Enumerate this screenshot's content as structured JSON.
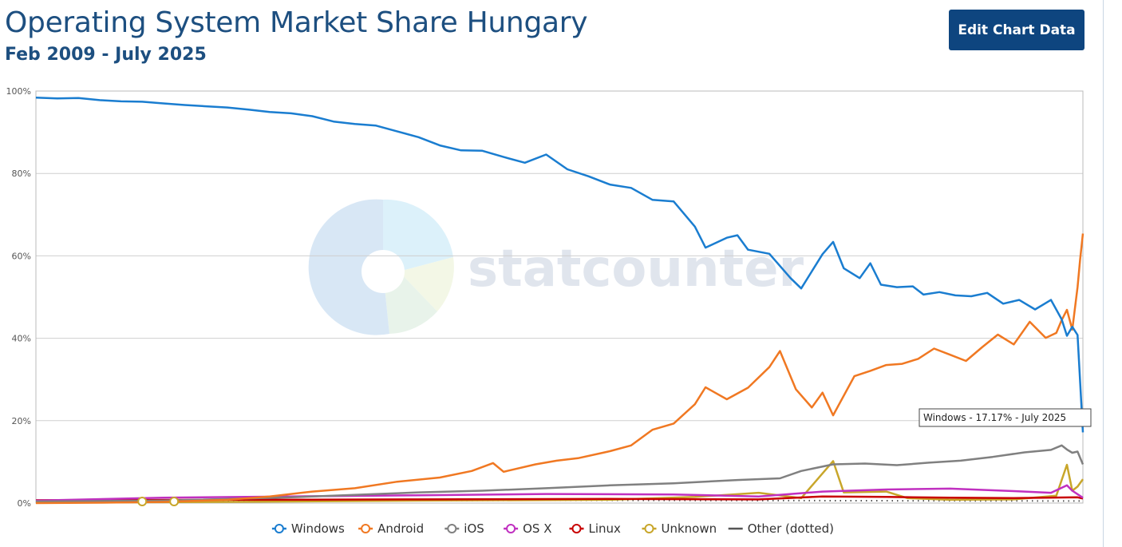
{
  "header": {
    "title": "Operating System Market Share Hungary",
    "subtitle": "Feb 2009 - July 2025",
    "edit_button": "Edit Chart Data"
  },
  "watermark": {
    "text": "statcounter"
  },
  "tooltip": {
    "text": "Windows - 17.17% - July 2025"
  },
  "chart_data": {
    "type": "line",
    "title": "Operating System Market Share Hungary",
    "subtitle": "Feb 2009 - July 2025",
    "x_range": [
      "2009-02",
      "2025-07"
    ],
    "ylim": [
      0,
      100
    ],
    "y_ticks": [
      "0%",
      "20%",
      "40%",
      "60%",
      "80%",
      "100%"
    ],
    "grid": true,
    "legend_position": "bottom",
    "series": [
      {
        "name": "Windows",
        "color": "#1a7dd0",
        "marker": "circle",
        "points": [
          [
            "2009-02",
            98.4
          ],
          [
            "2009-06",
            98.2
          ],
          [
            "2009-10",
            98.3
          ],
          [
            "2010-02",
            97.8
          ],
          [
            "2010-06",
            97.5
          ],
          [
            "2010-10",
            97.4
          ],
          [
            "2011-02",
            97.0
          ],
          [
            "2011-06",
            96.6
          ],
          [
            "2011-10",
            96.3
          ],
          [
            "2012-02",
            96.0
          ],
          [
            "2012-06",
            95.5
          ],
          [
            "2012-10",
            94.9
          ],
          [
            "2013-02",
            94.6
          ],
          [
            "2013-06",
            93.9
          ],
          [
            "2013-10",
            92.6
          ],
          [
            "2014-02",
            92.0
          ],
          [
            "2014-06",
            91.6
          ],
          [
            "2014-10",
            90.2
          ],
          [
            "2015-02",
            88.8
          ],
          [
            "2015-06",
            86.8
          ],
          [
            "2015-10",
            85.6
          ],
          [
            "2016-02",
            85.5
          ],
          [
            "2016-06",
            84.0
          ],
          [
            "2016-10",
            82.6
          ],
          [
            "2017-02",
            84.6
          ],
          [
            "2017-06",
            81.0
          ],
          [
            "2017-10",
            79.3
          ],
          [
            "2018-02",
            77.3
          ],
          [
            "2018-06",
            76.5
          ],
          [
            "2018-10",
            73.6
          ],
          [
            "2019-02",
            73.2
          ],
          [
            "2019-06",
            67.1
          ],
          [
            "2019-08",
            62.0
          ],
          [
            "2019-12",
            64.4
          ],
          [
            "2020-02",
            65.0
          ],
          [
            "2020-04",
            61.5
          ],
          [
            "2020-08",
            60.5
          ],
          [
            "2020-12",
            54.6
          ],
          [
            "2021-02",
            52.1
          ],
          [
            "2021-06",
            60.4
          ],
          [
            "2021-08",
            63.4
          ],
          [
            "2021-10",
            57.0
          ],
          [
            "2022-01",
            54.6
          ],
          [
            "2022-03",
            58.2
          ],
          [
            "2022-05",
            53.0
          ],
          [
            "2022-08",
            52.4
          ],
          [
            "2022-11",
            52.6
          ],
          [
            "2023-01",
            50.6
          ],
          [
            "2023-04",
            51.2
          ],
          [
            "2023-07",
            50.4
          ],
          [
            "2023-10",
            50.2
          ],
          [
            "2024-01",
            51.0
          ],
          [
            "2024-04",
            48.4
          ],
          [
            "2024-07",
            49.3
          ],
          [
            "2024-10",
            47.0
          ],
          [
            "2025-01",
            49.3
          ],
          [
            "2025-03",
            44.6
          ],
          [
            "2025-04",
            40.6
          ],
          [
            "2025-05",
            42.8
          ],
          [
            "2025-06",
            40.8
          ],
          [
            "2025-07",
            17.17
          ]
        ]
      },
      {
        "name": "Android",
        "color": "#f07822",
        "marker": "circle",
        "points": [
          [
            "2009-02",
            0.0
          ],
          [
            "2010-02",
            0.1
          ],
          [
            "2011-02",
            0.3
          ],
          [
            "2012-02",
            0.8
          ],
          [
            "2012-10",
            1.6
          ],
          [
            "2013-06",
            2.8
          ],
          [
            "2014-02",
            3.6
          ],
          [
            "2014-10",
            5.2
          ],
          [
            "2015-06",
            6.2
          ],
          [
            "2015-12",
            7.8
          ],
          [
            "2016-04",
            9.7
          ],
          [
            "2016-06",
            7.6
          ],
          [
            "2016-12",
            9.4
          ],
          [
            "2017-04",
            10.3
          ],
          [
            "2017-08",
            10.9
          ],
          [
            "2018-02",
            12.6
          ],
          [
            "2018-06",
            14.0
          ],
          [
            "2018-10",
            17.8
          ],
          [
            "2019-02",
            19.3
          ],
          [
            "2019-06",
            24.0
          ],
          [
            "2019-08",
            28.1
          ],
          [
            "2019-12",
            25.2
          ],
          [
            "2020-04",
            28.0
          ],
          [
            "2020-08",
            33.0
          ],
          [
            "2020-10",
            36.9
          ],
          [
            "2021-01",
            27.6
          ],
          [
            "2021-04",
            23.2
          ],
          [
            "2021-06",
            26.8
          ],
          [
            "2021-08",
            21.3
          ],
          [
            "2021-12",
            30.8
          ],
          [
            "2022-03",
            32.1
          ],
          [
            "2022-06",
            33.5
          ],
          [
            "2022-09",
            33.8
          ],
          [
            "2022-12",
            35.0
          ],
          [
            "2023-03",
            37.5
          ],
          [
            "2023-06",
            36.0
          ],
          [
            "2023-09",
            34.5
          ],
          [
            "2023-12",
            37.8
          ],
          [
            "2024-03",
            40.9
          ],
          [
            "2024-06",
            38.5
          ],
          [
            "2024-09",
            44.0
          ],
          [
            "2024-12",
            40.1
          ],
          [
            "2025-02",
            41.3
          ],
          [
            "2025-03",
            44.4
          ],
          [
            "2025-04",
            46.9
          ],
          [
            "2025-05",
            42.1
          ],
          [
            "2025-06",
            52.4
          ],
          [
            "2025-06-15",
            58.9
          ],
          [
            "2025-07",
            65.4
          ]
        ]
      },
      {
        "name": "iOS",
        "color": "#808080",
        "marker": "circle",
        "points": [
          [
            "2009-02",
            0.4
          ],
          [
            "2011-02",
            0.6
          ],
          [
            "2013-02",
            1.4
          ],
          [
            "2015-02",
            2.6
          ],
          [
            "2016-02",
            3.0
          ],
          [
            "2017-02",
            3.6
          ],
          [
            "2018-02",
            4.3
          ],
          [
            "2019-02",
            4.8
          ],
          [
            "2020-02",
            5.6
          ],
          [
            "2020-10",
            6.0
          ],
          [
            "2021-02",
            7.8
          ],
          [
            "2021-08",
            9.4
          ],
          [
            "2022-02",
            9.6
          ],
          [
            "2022-08",
            9.2
          ],
          [
            "2023-02",
            9.8
          ],
          [
            "2023-08",
            10.3
          ],
          [
            "2024-02",
            11.2
          ],
          [
            "2024-08",
            12.3
          ],
          [
            "2025-01",
            12.9
          ],
          [
            "2025-03",
            14.0
          ],
          [
            "2025-04",
            13.0
          ],
          [
            "2025-05",
            12.2
          ],
          [
            "2025-06",
            12.5
          ],
          [
            "2025-07",
            9.4
          ]
        ]
      },
      {
        "name": "OS X",
        "color": "#c030c0",
        "marker": "circle",
        "points": [
          [
            "2009-02",
            0.6
          ],
          [
            "2011-02",
            1.3
          ],
          [
            "2013-02",
            1.6
          ],
          [
            "2015-02",
            1.9
          ],
          [
            "2017-02",
            2.2
          ],
          [
            "2019-02",
            2.1
          ],
          [
            "2020-06",
            1.6
          ],
          [
            "2021-06",
            2.8
          ],
          [
            "2022-06",
            3.3
          ],
          [
            "2023-06",
            3.5
          ],
          [
            "2024-06",
            2.9
          ],
          [
            "2025-01",
            2.5
          ],
          [
            "2025-04",
            4.3
          ],
          [
            "2025-05",
            3.0
          ],
          [
            "2025-07",
            1.3
          ]
        ]
      },
      {
        "name": "Linux",
        "color": "#c80000",
        "marker": "circle",
        "points": [
          [
            "2009-02",
            0.7
          ],
          [
            "2012-02",
            0.8
          ],
          [
            "2015-02",
            0.9
          ],
          [
            "2018-02",
            1.0
          ],
          [
            "2020-06",
            0.9
          ],
          [
            "2021-06",
            1.6
          ],
          [
            "2022-06",
            1.5
          ],
          [
            "2023-06",
            1.3
          ],
          [
            "2024-06",
            1.2
          ],
          [
            "2025-06",
            1.4
          ],
          [
            "2025-07",
            1.1
          ]
        ]
      },
      {
        "name": "Unknown",
        "color": "#c8a62a",
        "marker": "circle",
        "points": [
          [
            "2009-02",
            0.1
          ],
          [
            "2012-02",
            0.3
          ],
          [
            "2015-02",
            0.6
          ],
          [
            "2018-02",
            0.8
          ],
          [
            "2019-06",
            1.5
          ],
          [
            "2020-06",
            2.5
          ],
          [
            "2021-02",
            1.2
          ],
          [
            "2021-08",
            10.2
          ],
          [
            "2021-10",
            2.6
          ],
          [
            "2022-06",
            2.8
          ],
          [
            "2022-10",
            1.2
          ],
          [
            "2023-06",
            0.8
          ],
          [
            "2024-06",
            0.9
          ],
          [
            "2025-02",
            1.8
          ],
          [
            "2025-04",
            9.3
          ],
          [
            "2025-05",
            3.0
          ],
          [
            "2025-06",
            4.0
          ],
          [
            "2025-07",
            5.8
          ]
        ]
      },
      {
        "name": "Other (dotted)",
        "color": "#555555",
        "marker": "dash",
        "dotted": true,
        "points": [
          [
            "2009-02",
            0.3
          ],
          [
            "2013-02",
            0.5
          ],
          [
            "2017-02",
            0.7
          ],
          [
            "2021-02",
            0.6
          ],
          [
            "2025-07",
            0.5
          ]
        ]
      }
    ]
  }
}
